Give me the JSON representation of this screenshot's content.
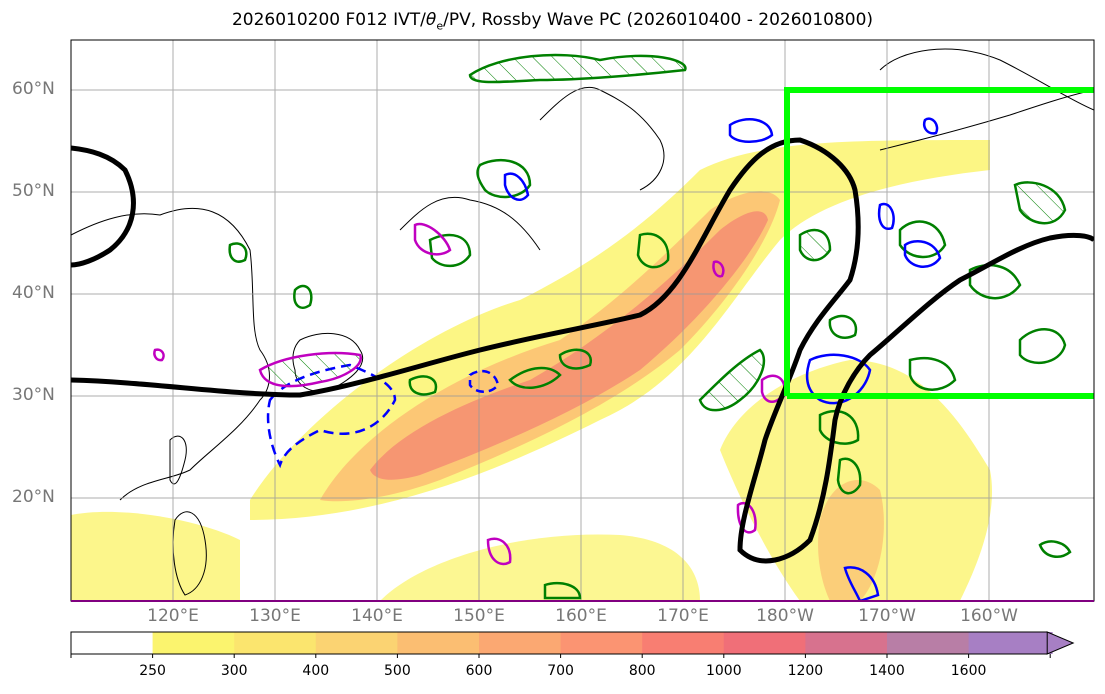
{
  "title": {
    "prefix": "2026010200 F012 IVT/",
    "theta": "θ",
    "theta_sub": "e",
    "suffix": "/PV, Rossby Wave PC (2026010400 - 2026010800)"
  },
  "lat_labels": [
    "60°N",
    "50°N",
    "40°N",
    "30°N",
    "20°N"
  ],
  "lon_labels": [
    "120°E",
    "130°E",
    "140°E",
    "150°E",
    "160°E",
    "170°E",
    "180°W",
    "170°W",
    "160°W"
  ],
  "colorbar": {
    "levels": [
      "250",
      "300",
      "400",
      "500",
      "600",
      "700",
      "800",
      "1000",
      "1200",
      "1400",
      "1600"
    ],
    "colors": [
      "#ffffff",
      "#fbf46e",
      "#fbe56e",
      "#fbd372",
      "#fbbe72",
      "#fba872",
      "#fb9472",
      "#f87e72",
      "#f06f78",
      "#d7728e",
      "#b87ea6",
      "#a77fc4"
    ]
  },
  "colors": {
    "ivt_low": "#fbf46e",
    "ivt_mid": "#fbbe72",
    "ivt_high": "#f48a72",
    "wave_contour": "#000000",
    "theta_contour": "#008000",
    "pv_positive": "#0000ff",
    "pv_contour": "#c000c0",
    "box": "#00ff00"
  }
}
